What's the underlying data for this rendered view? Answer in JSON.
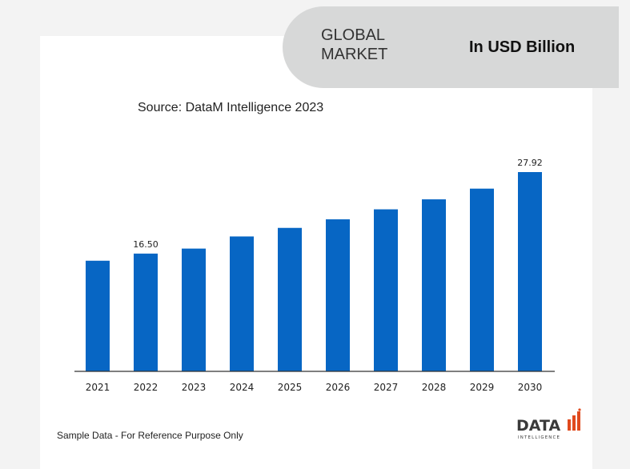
{
  "header": {
    "region": "GLOBAL MARKET",
    "unit": "In USD Billion"
  },
  "source": "Source: DataM Intelligence 2023",
  "footer_note": "Sample Data - For Reference Purpose Only",
  "logo": {
    "main": "DATA",
    "sub": "INTELLIGENCE"
  },
  "colors": {
    "bar": "#0766c4",
    "pill": "#d7d8d8",
    "logo_dark": "#3a3a3a",
    "logo_accent": "#e04a1e"
  },
  "chart_data": {
    "type": "bar",
    "categories": [
      "2021",
      "2022",
      "2023",
      "2024",
      "2025",
      "2026",
      "2027",
      "2028",
      "2029",
      "2030"
    ],
    "values": [
      15.5,
      16.5,
      17.2,
      18.9,
      20.1,
      21.3,
      22.7,
      24.1,
      25.6,
      27.92
    ],
    "data_labels": [
      null,
      "16.50",
      null,
      null,
      null,
      null,
      null,
      null,
      null,
      "27.92"
    ],
    "ylim": [
      0,
      28
    ],
    "title": "",
    "xlabel": "",
    "ylabel": "",
    "grid": false,
    "legend": "none"
  }
}
